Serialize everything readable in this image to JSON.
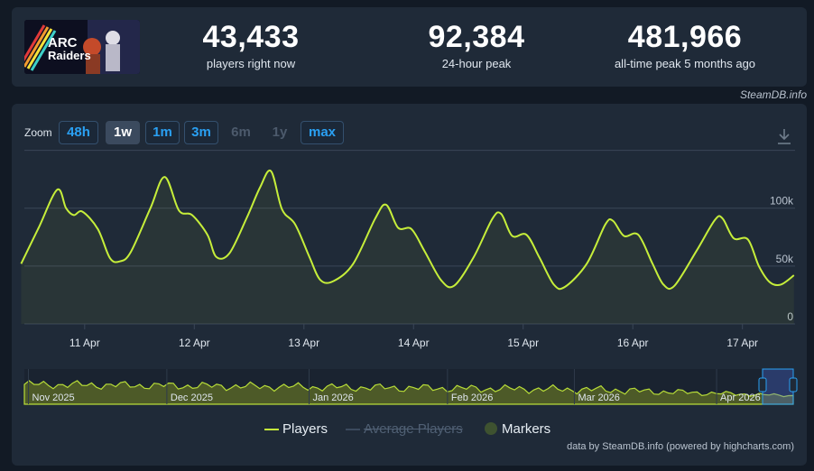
{
  "stats": [
    {
      "value": "43,433",
      "label": "players right now"
    },
    {
      "value": "92,384",
      "label": "24-hour peak"
    },
    {
      "value": "481,966",
      "label": "all-time peak 5 months ago"
    }
  ],
  "game": {
    "logo_text_line1": "ARC",
    "logo_text_line2": "Raiders"
  },
  "credit_top": "SteamDB.info",
  "zoom": {
    "label": "Zoom",
    "buttons": [
      {
        "label": "48h",
        "state": "enabled"
      },
      {
        "label": "1w",
        "state": "active"
      },
      {
        "label": "1m",
        "state": "enabled"
      },
      {
        "label": "3m",
        "state": "enabled"
      },
      {
        "label": "6m",
        "state": "disabled"
      },
      {
        "label": "1y",
        "state": "disabled"
      },
      {
        "label": "max",
        "state": "enabled"
      }
    ]
  },
  "legend": {
    "players": "Players",
    "average": "Average Players",
    "markers": "Markers"
  },
  "credit_bottom": "data by SteamDB.info (powered by highcharts.com)",
  "colors": {
    "series": "#c6ee3a",
    "background": "#121a25",
    "panel": "#1f2a38",
    "zoom_link": "#2aa0f3",
    "navigator_fill": "#4d5a28",
    "marker": "#3e5230"
  },
  "chart_data": {
    "type": "line",
    "x_unit": "hours since 10 Apr 00:00",
    "x_range": [
      10.25,
      7.25
    ],
    "y_range": [
      0,
      145000
    ],
    "y_ticks": [
      {
        "value": 0,
        "label": "0"
      },
      {
        "value": 50000,
        "label": "50k"
      },
      {
        "value": 100000,
        "label": "100k"
      }
    ],
    "x_ticks": [
      {
        "day": 1,
        "label": "11 Apr"
      },
      {
        "day": 2,
        "label": "12 Apr"
      },
      {
        "day": 3,
        "label": "13 Apr"
      },
      {
        "day": 4,
        "label": "14 Apr"
      },
      {
        "day": 5,
        "label": "15 Apr"
      },
      {
        "day": 6,
        "label": "16 Apr"
      },
      {
        "day": 7,
        "label": "17 Apr"
      }
    ],
    "grid": true,
    "series": [
      {
        "name": "Players",
        "points": [
          [
            0.42,
            52000
          ],
          [
            0.58,
            83000
          ],
          [
            0.75,
            116000
          ],
          [
            0.83,
            100000
          ],
          [
            0.9,
            94000
          ],
          [
            0.98,
            97000
          ],
          [
            1.12,
            82000
          ],
          [
            1.23,
            57000
          ],
          [
            1.32,
            54000
          ],
          [
            1.42,
            62000
          ],
          [
            1.6,
            100000
          ],
          [
            1.73,
            127000
          ],
          [
            1.86,
            98000
          ],
          [
            1.98,
            94000
          ],
          [
            2.12,
            77000
          ],
          [
            2.2,
            58000
          ],
          [
            2.32,
            61000
          ],
          [
            2.48,
            92000
          ],
          [
            2.6,
            118000
          ],
          [
            2.7,
            132000
          ],
          [
            2.8,
            99000
          ],
          [
            2.92,
            86000
          ],
          [
            3.05,
            58000
          ],
          [
            3.15,
            38000
          ],
          [
            3.27,
            37000
          ],
          [
            3.45,
            52000
          ],
          [
            3.65,
            91000
          ],
          [
            3.75,
            103000
          ],
          [
            3.86,
            83000
          ],
          [
            3.98,
            82000
          ],
          [
            4.1,
            63000
          ],
          [
            4.25,
            38000
          ],
          [
            4.37,
            33000
          ],
          [
            4.55,
            58000
          ],
          [
            4.72,
            91000
          ],
          [
            4.8,
            95000
          ],
          [
            4.9,
            76000
          ],
          [
            5.03,
            77000
          ],
          [
            5.15,
            57000
          ],
          [
            5.28,
            34000
          ],
          [
            5.38,
            32000
          ],
          [
            5.58,
            52000
          ],
          [
            5.75,
            86000
          ],
          [
            5.82,
            89000
          ],
          [
            5.92,
            76000
          ],
          [
            6.05,
            77000
          ],
          [
            6.18,
            52000
          ],
          [
            6.28,
            34000
          ],
          [
            6.38,
            33000
          ],
          [
            6.58,
            63000
          ],
          [
            6.75,
            90000
          ],
          [
            6.82,
            91000
          ],
          [
            6.92,
            74000
          ],
          [
            7.05,
            73000
          ],
          [
            7.15,
            50000
          ],
          [
            7.25,
            36000
          ],
          [
            7.35,
            34000
          ],
          [
            7.47,
            42000
          ]
        ]
      }
    ],
    "navigator": {
      "x_labels": [
        "Nov 2025",
        "Dec 2025",
        "Jan 2026",
        "Feb 2026",
        "Mar 2026",
        "Apr 2026"
      ],
      "series": "Players"
    }
  }
}
